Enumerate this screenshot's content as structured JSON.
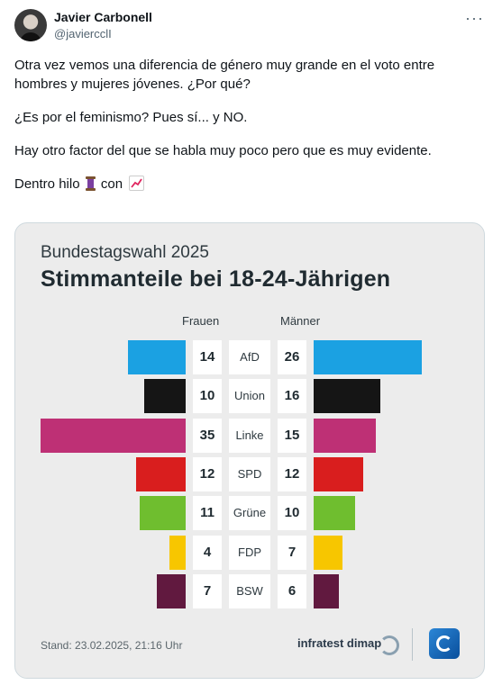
{
  "tweet": {
    "author_name": "Javier Carbonell",
    "author_handle": "@javiercclI",
    "paragraphs": [
      "Otra vez vemos una diferencia de género muy grande en el voto entre hombres y mujeres jóvenes. ¿Por qué?",
      "¿Es por el feminismo? Pues sí... y NO.",
      "Hay otro factor del que se habla muy poco pero que es muy evidente."
    ],
    "last_line_prefix": "Dentro hilo",
    "last_line_mid": "con",
    "more_label": "···"
  },
  "chart": {
    "kicker": "Bundestagswahl 2025",
    "title": "Stimmanteile bei 18-24-Jährigen",
    "col_female": "Frauen",
    "col_male": "Männer",
    "stand": "Stand:  23.02.2025, 21:16 Uhr",
    "source": "infratest dimap"
  },
  "chart_data": {
    "type": "bar",
    "categories": [
      "AfD",
      "Union",
      "Linke",
      "SPD",
      "Grüne",
      "FDP",
      "BSW"
    ],
    "series": [
      {
        "name": "Frauen",
        "values": [
          14,
          10,
          35,
          12,
          11,
          4,
          7
        ]
      },
      {
        "name": "Männer",
        "values": [
          26,
          16,
          15,
          12,
          10,
          7,
          6
        ]
      }
    ],
    "colors": [
      "#1ba1e2",
      "#151515",
      "#be3075",
      "#d91e1e",
      "#6fbe2f",
      "#f7c600",
      "#61193f"
    ],
    "title": "Stimmanteile bei 18-24-Jährigen",
    "subtitle": "Bundestagswahl 2025"
  }
}
